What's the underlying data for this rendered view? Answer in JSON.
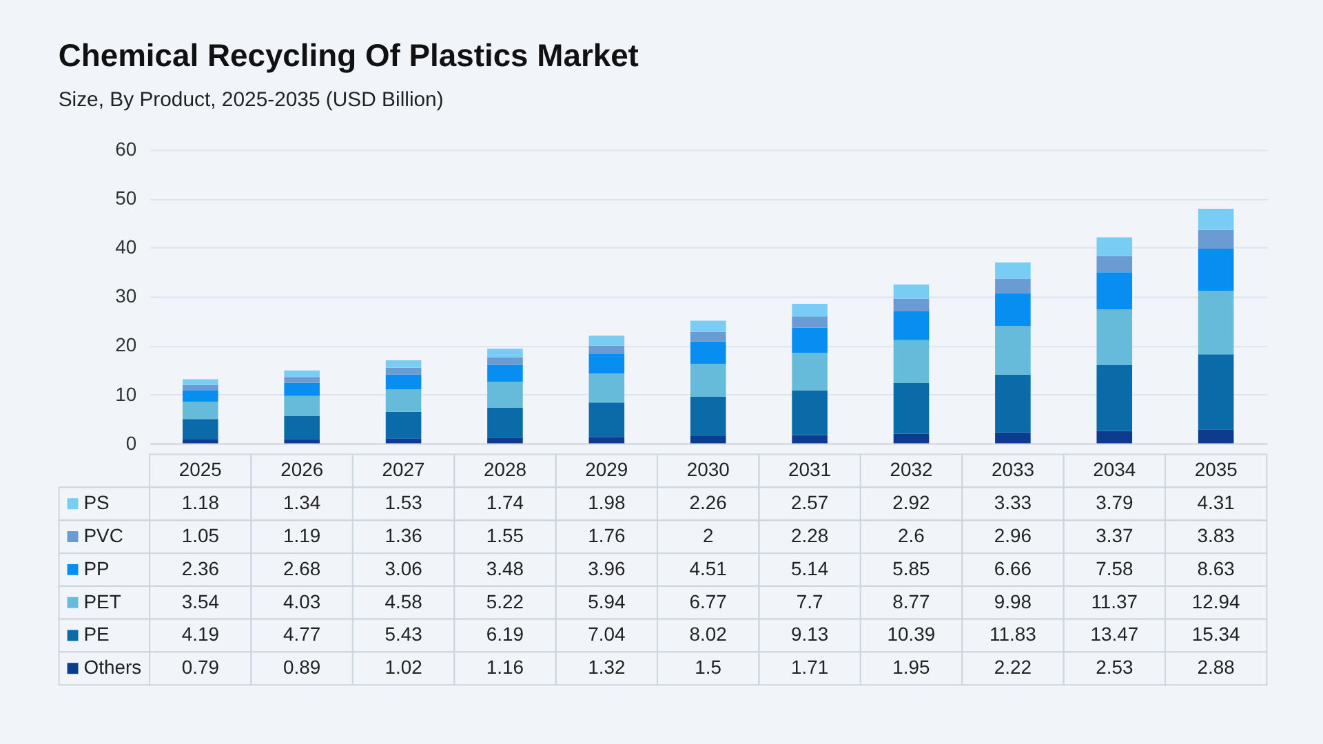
{
  "chart_data": {
    "type": "bar",
    "title": "Chemical Recycling Of Plastics Market",
    "subtitle": "Size, By Product, 2025-2035 (USD Billion)",
    "categories": [
      "2025",
      "2026",
      "2027",
      "2028",
      "2029",
      "2030",
      "2031",
      "2032",
      "2033",
      "2034",
      "2035"
    ],
    "stacked": true,
    "ylim": [
      0,
      60
    ],
    "yticks": [
      0,
      10,
      20,
      30,
      40,
      50,
      60
    ],
    "grid": "y",
    "legend": "bottom left",
    "data_labels": true,
    "series": [
      {
        "name": "Others",
        "color": "#0d3b8e",
        "values": [
          0.79,
          0.89,
          1.02,
          1.16,
          1.32,
          1.5,
          1.71,
          1.95,
          2.22,
          2.53,
          2.88
        ]
      },
      {
        "name": "PE",
        "color": "#0b6ba8",
        "values": [
          4.19,
          4.77,
          5.43,
          6.19,
          7.04,
          8.02,
          9.13,
          10.39,
          11.83,
          13.47,
          15.34
        ]
      },
      {
        "name": "PET",
        "color": "#66bbdb",
        "values": [
          3.54,
          4.03,
          4.58,
          5.22,
          5.94,
          6.77,
          7.7,
          8.77,
          9.98,
          11.37,
          12.94
        ]
      },
      {
        "name": "PP",
        "color": "#078ef0",
        "values": [
          2.36,
          2.68,
          3.06,
          3.48,
          3.96,
          4.51,
          5.14,
          5.85,
          6.66,
          7.58,
          8.63
        ]
      },
      {
        "name": "PVC",
        "color": "#6a9bd3",
        "values": [
          1.05,
          1.19,
          1.36,
          1.55,
          1.76,
          2,
          2.28,
          2.6,
          2.96,
          3.37,
          3.83
        ]
      },
      {
        "name": "PS",
        "color": "#79cdf5",
        "values": [
          1.18,
          1.34,
          1.53,
          1.74,
          1.98,
          2.26,
          2.57,
          2.92,
          3.33,
          3.79,
          4.31
        ]
      }
    ]
  }
}
